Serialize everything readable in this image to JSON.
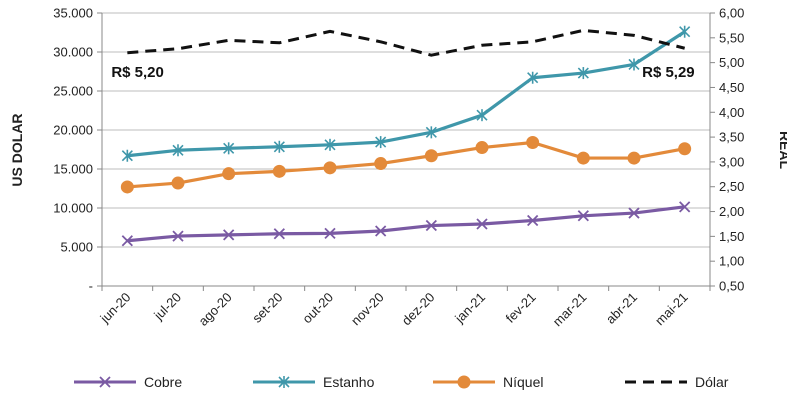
{
  "chart_data": {
    "type": "line",
    "categories": [
      "jun-20",
      "jul-20",
      "ago-20",
      "set-20",
      "out-20",
      "nov-20",
      "dez-20",
      "jan-21",
      "fev-21",
      "mar-21",
      "abr-21",
      "mai-21"
    ],
    "y_left": {
      "label": "US DOLAR",
      "range": [
        0,
        35000
      ],
      "tick_labels": [
        "-",
        "5.000",
        "10.000",
        "15.000",
        "20.000",
        "25.000",
        "30.000",
        "35.000"
      ]
    },
    "y_right": {
      "label": "REAL",
      "range": [
        0.5,
        6.0
      ],
      "tick_labels": [
        "0,50",
        "1,00",
        "1,50",
        "2,00",
        "2,50",
        "3,00",
        "3,50",
        "4,00",
        "4,50",
        "5,00",
        "5,50",
        "6,00"
      ]
    },
    "series": [
      {
        "name": "Cobre",
        "axis": "left",
        "color": "#7a5aa3",
        "marker": "x",
        "values": [
          5800,
          6400,
          6550,
          6700,
          6750,
          7050,
          7750,
          7950,
          8400,
          9000,
          9350,
          10150
        ]
      },
      {
        "name": "Estanho",
        "axis": "left",
        "color": "#3f97aa",
        "marker": "star",
        "values": [
          16700,
          17400,
          17650,
          17850,
          18100,
          18450,
          19700,
          21900,
          26700,
          27300,
          28400,
          32600
        ]
      },
      {
        "name": "Níquel",
        "axis": "left",
        "color": "#e38a3a",
        "marker": "circle",
        "values": [
          12700,
          13200,
          14400,
          14700,
          15150,
          15700,
          16700,
          17750,
          18400,
          16400,
          16400,
          17600
        ]
      },
      {
        "name": "Dólar",
        "axis": "right",
        "color": "#111111",
        "marker": "none",
        "dashed": true,
        "values": [
          5.2,
          5.28,
          5.45,
          5.4,
          5.63,
          5.42,
          5.15,
          5.35,
          5.42,
          5.65,
          5.55,
          5.29
        ]
      }
    ],
    "annotations": [
      {
        "text": "R$ 5,20",
        "category": "jun-20"
      },
      {
        "text": "R$ 5,29",
        "category": "mai-21"
      }
    ],
    "grid": "horizontal",
    "legend": "bottom"
  }
}
